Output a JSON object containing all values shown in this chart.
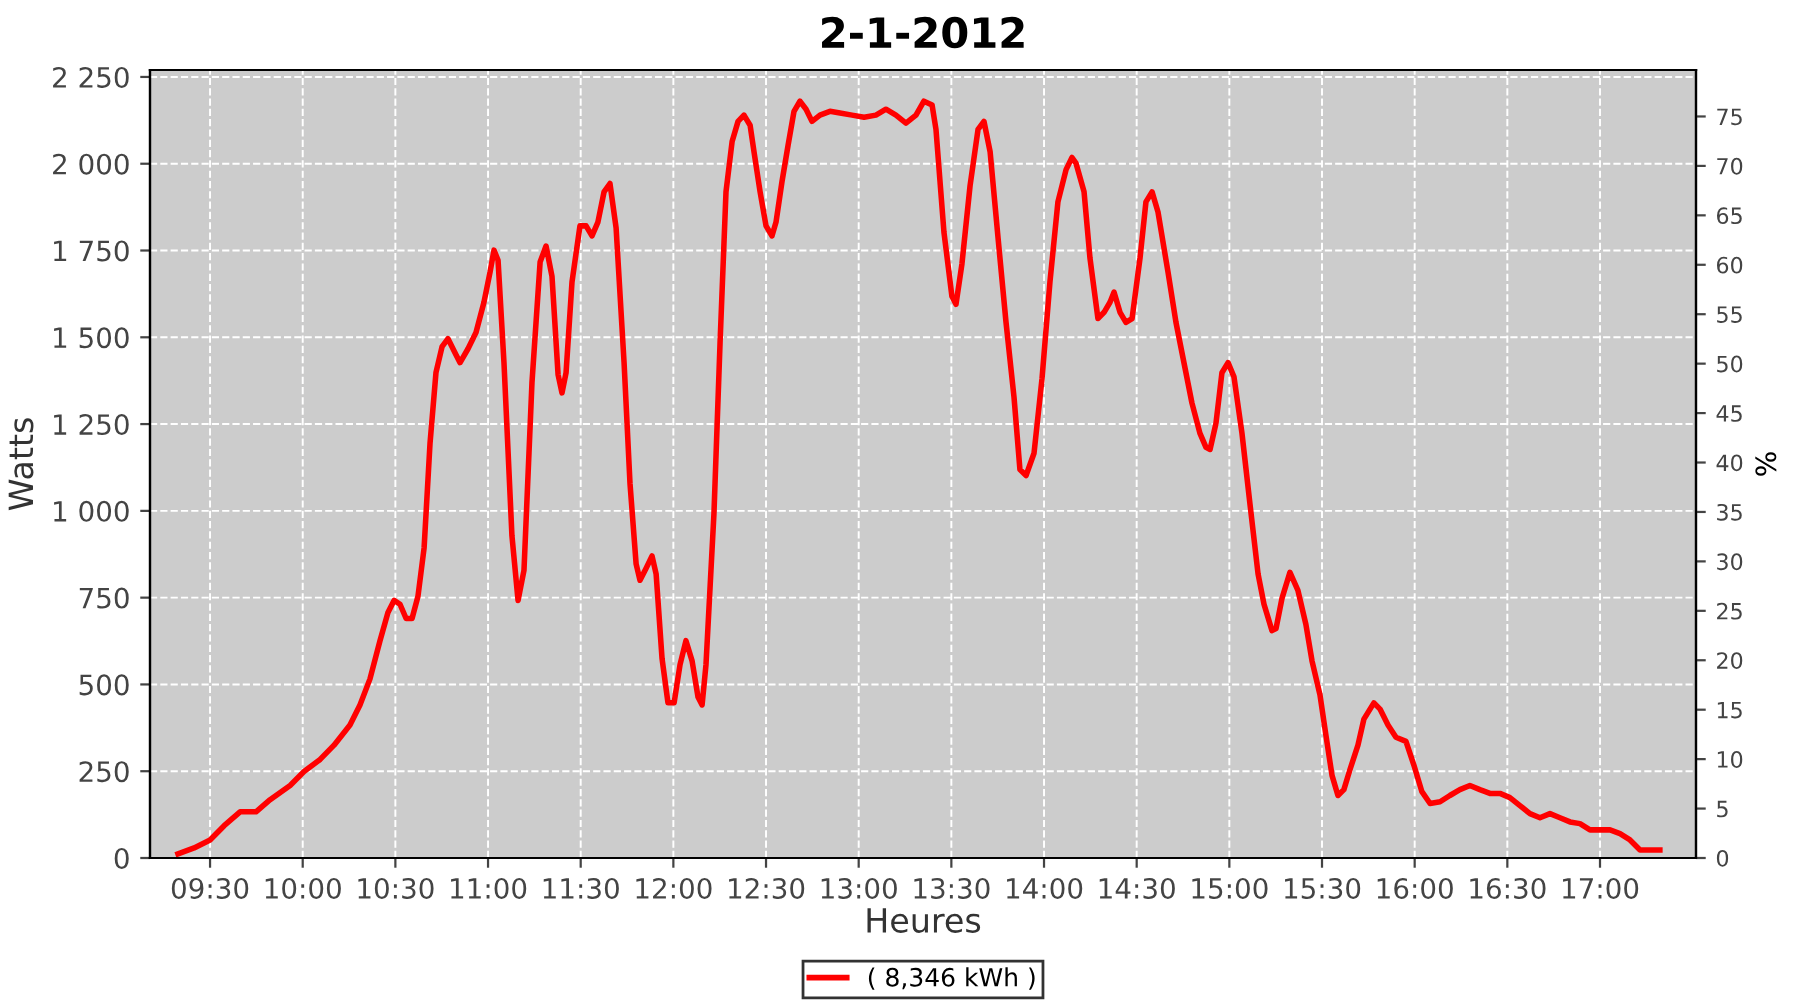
{
  "chart_data": {
    "type": "line",
    "title": "2-1-2012",
    "xlabel": "Heures",
    "ylabel": "Watts",
    "y2label": "%",
    "xlim": [
      9.176,
      17.518
    ],
    "ylim": [
      0,
      2270
    ],
    "y2lim": [
      0,
      79.7
    ],
    "xticks": [
      {
        "value": 9.5,
        "label": "09:30"
      },
      {
        "value": 10.0,
        "label": "10:00"
      },
      {
        "value": 10.5,
        "label": "10:30"
      },
      {
        "value": 11.0,
        "label": "11:00"
      },
      {
        "value": 11.5,
        "label": "11:30"
      },
      {
        "value": 12.0,
        "label": "12:00"
      },
      {
        "value": 12.5,
        "label": "12:30"
      },
      {
        "value": 13.0,
        "label": "13:00"
      },
      {
        "value": 13.5,
        "label": "13:30"
      },
      {
        "value": 14.0,
        "label": "14:00"
      },
      {
        "value": 14.5,
        "label": "14:30"
      },
      {
        "value": 15.0,
        "label": "15:00"
      },
      {
        "value": 15.5,
        "label": "15:30"
      },
      {
        "value": 16.0,
        "label": "16:00"
      },
      {
        "value": 16.5,
        "label": "16:30"
      },
      {
        "value": 17.0,
        "label": "17:00"
      }
    ],
    "yticks": [
      0,
      250,
      500,
      750,
      {
        "value": 1000,
        "label": "1 000"
      },
      {
        "value": 1250,
        "label": "1 250"
      },
      {
        "value": 1500,
        "label": "1 500"
      },
      {
        "value": 1750,
        "label": "1 750"
      },
      {
        "value": 2000,
        "label": "2 000"
      },
      {
        "value": 2250,
        "label": "2 250"
      }
    ],
    "y2ticks": [
      0,
      5,
      10,
      15,
      20,
      25,
      30,
      35,
      40,
      45,
      50,
      55,
      60,
      65,
      70,
      75
    ],
    "grid": true,
    "legend": "bottom",
    "marker": "none",
    "line_style": "solid",
    "series": [
      {
        "name": "( 8,346 kWh )",
        "color": "#ff0000",
        "x": [
          9.327,
          9.414,
          9.5,
          9.576,
          9.662,
          9.748,
          9.824,
          9.932,
          10.007,
          10.094,
          10.169,
          10.255,
          10.309,
          10.363,
          10.417,
          10.46,
          10.493,
          10.525,
          10.558,
          10.59,
          10.622,
          10.655,
          10.687,
          10.719,
          10.752,
          10.784,
          10.827,
          10.849,
          10.892,
          10.935,
          10.978,
          11.011,
          11.032,
          11.054,
          11.086,
          11.129,
          11.162,
          11.194,
          11.237,
          11.281,
          11.313,
          11.345,
          11.378,
          11.399,
          11.421,
          11.453,
          11.496,
          11.529,
          11.561,
          11.593,
          11.626,
          11.658,
          11.691,
          11.734,
          11.766,
          11.799,
          11.82,
          11.853,
          11.885,
          11.907,
          11.939,
          11.971,
          12.004,
          12.036,
          12.068,
          12.101,
          12.133,
          12.155,
          12.176,
          12.219,
          12.252,
          12.284,
          12.317,
          12.349,
          12.381,
          12.414,
          12.435,
          12.468,
          12.5,
          12.532,
          12.554,
          12.586,
          12.619,
          12.651,
          12.683,
          12.716,
          12.748,
          12.791,
          12.845,
          12.899,
          12.964,
          13.029,
          13.093,
          13.147,
          13.201,
          13.255,
          13.309,
          13.352,
          13.396,
          13.417,
          13.46,
          13.503,
          13.525,
          13.557,
          13.601,
          13.644,
          13.676,
          13.709,
          13.752,
          13.795,
          13.838,
          13.87,
          13.903,
          13.946,
          13.989,
          14.032,
          14.075,
          14.119,
          14.151,
          14.173,
          14.216,
          14.248,
          14.291,
          14.324,
          14.356,
          14.378,
          14.41,
          14.442,
          14.475,
          14.518,
          14.55,
          14.583,
          14.615,
          14.669,
          14.712,
          14.755,
          14.798,
          14.841,
          14.874,
          14.896,
          14.928,
          14.96,
          14.993,
          15.025,
          15.068,
          15.111,
          15.155,
          15.187,
          15.23,
          15.252,
          15.284,
          15.327,
          15.37,
          15.413,
          15.446,
          15.489,
          15.521,
          15.554,
          15.586,
          15.618,
          15.651,
          15.694,
          15.726,
          15.78,
          15.813,
          15.856,
          15.899,
          15.953,
          15.996,
          16.039,
          16.083,
          16.137,
          16.19,
          16.244,
          16.298,
          16.352,
          16.406,
          16.46,
          16.514,
          16.568,
          16.622,
          16.676,
          16.73,
          16.784,
          16.838,
          16.892,
          16.946,
          17.0,
          17.054,
          17.108,
          17.162,
          17.216,
          17.27,
          17.323
        ],
        "values": [
          12,
          29,
          52,
          93,
          133,
          133,
          168,
          209,
          249,
          284,
          325,
          383,
          441,
          516,
          626,
          707,
          742,
          731,
          690,
          690,
          754,
          893,
          1195,
          1398,
          1473,
          1496,
          1450,
          1427,
          1467,
          1514,
          1601,
          1688,
          1751,
          1722,
          1427,
          928,
          742,
          829,
          1369,
          1717,
          1763,
          1676,
          1392,
          1340,
          1398,
          1659,
          1821,
          1821,
          1792,
          1832,
          1919,
          1943,
          1815,
          1427,
          1079,
          847,
          800,
          835,
          870,
          818,
          574,
          447,
          447,
          557,
          626,
          568,
          464,
          441,
          557,
          992,
          1485,
          1919,
          2064,
          2122,
          2140,
          2111,
          2035,
          1919,
          1821,
          1792,
          1832,
          1948,
          2053,
          2151,
          2180,
          2157,
          2122,
          2140,
          2151,
          2146,
          2140,
          2134,
          2140,
          2157,
          2140,
          2117,
          2140,
          2180,
          2169,
          2099,
          1803,
          1618,
          1595,
          1711,
          1937,
          2099,
          2122,
          2035,
          1786,
          1543,
          1328,
          1119,
          1102,
          1166,
          1380,
          1659,
          1890,
          1983,
          2018,
          2001,
          1919,
          1728,
          1554,
          1572,
          1601,
          1630,
          1572,
          1543,
          1554,
          1728,
          1890,
          1919,
          1861,
          1688,
          1543,
          1427,
          1311,
          1224,
          1183,
          1177,
          1253,
          1398,
          1427,
          1386,
          1224,
          1021,
          818,
          731,
          655,
          661,
          748,
          823,
          771,
          673,
          568,
          470,
          354,
          238,
          180,
          197,
          255,
          325,
          400,
          447,
          429,
          383,
          348,
          336,
          267,
          191,
          157,
          162,
          180,
          197,
          209,
          197,
          186,
          186,
          174,
          151,
          128,
          116,
          128,
          116,
          104,
          99,
          81,
          81,
          81,
          70,
          52,
          23,
          23,
          23
        ]
      }
    ]
  }
}
